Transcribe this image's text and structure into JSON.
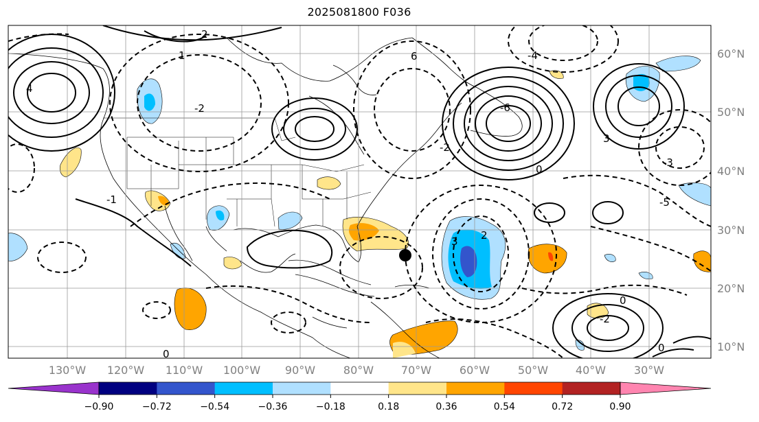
{
  "title": "2025081800 F036",
  "map": {
    "lat_labels": [
      "60°N",
      "50°N",
      "40°N",
      "30°N",
      "20°N",
      "10°N"
    ],
    "lon_labels": [
      "130°W",
      "120°W",
      "110°W",
      "100°W",
      "90°W",
      "80°W",
      "70°W",
      "60°W",
      "50°W",
      "40°W",
      "30°W"
    ],
    "contour_labels": [
      "-2",
      "-1",
      "0",
      "1",
      "2",
      "-3",
      "-6",
      "6",
      "3",
      "4",
      "-4",
      "-5"
    ]
  },
  "colorbar": {
    "ticks": [
      "−0.90",
      "−0.72",
      "−0.54",
      "−0.36",
      "−0.18",
      "0.18",
      "0.36",
      "0.54",
      "0.72",
      "0.90"
    ],
    "colors": [
      "#9933cc",
      "#000080",
      "#3355cc",
      "#00bfff",
      "#b0e0ff",
      "#ffffff",
      "#ffe58a",
      "#ffa500",
      "#ff4500",
      "#b22222",
      "#ff85b0"
    ]
  }
}
